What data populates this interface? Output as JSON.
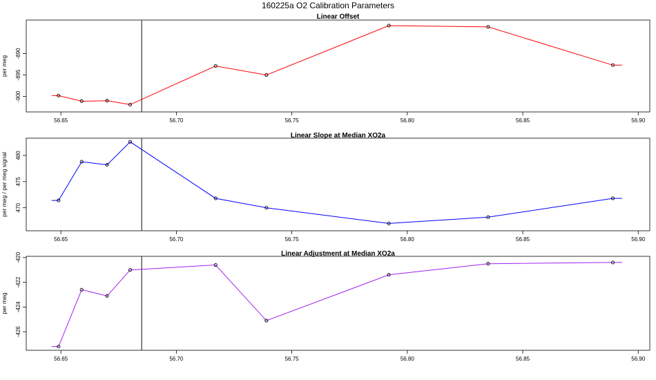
{
  "figure": {
    "title": "160225a   O2 Calibration Parameters"
  },
  "chart_data": [
    {
      "type": "line",
      "title": "Linear Offset",
      "xlabel": "",
      "ylabel": "per meg",
      "color": "#ff0000",
      "point_color": "#000000",
      "marker_line_x": 56.685,
      "xlim": [
        56.635,
        56.905
      ],
      "ylim": [
        -903.6,
        -882.2
      ],
      "x_ticks": [
        56.65,
        56.7,
        56.75,
        56.8,
        56.85,
        56.9
      ],
      "x_tick_labels": [
        "56.65",
        "56.70",
        "56.75",
        "56.80",
        "56.85",
        "56.90"
      ],
      "y_ticks": [
        -900,
        -895,
        -890
      ],
      "y_tick_labels": [
        "-900",
        "-895",
        "-890"
      ],
      "line": {
        "x": [
          56.646,
          56.649,
          56.659,
          56.67,
          56.68,
          56.717,
          56.739,
          56.792,
          56.835,
          56.889,
          56.893
        ],
        "y": [
          -899.8,
          -899.8,
          -901.1,
          -901.0,
          -901.9,
          -892.9,
          -895.0,
          -883.5,
          -883.8,
          -892.7,
          -892.7
        ]
      },
      "points": {
        "x": [
          56.649,
          56.659,
          56.67,
          56.68,
          56.717,
          56.739,
          56.792,
          56.835,
          56.889
        ],
        "y": [
          -899.8,
          -901.1,
          -901.0,
          -901.9,
          -892.9,
          -895.0,
          -883.5,
          -883.8,
          -892.7
        ]
      }
    },
    {
      "type": "line",
      "title": "Linear Slope at Median XO2a",
      "xlabel": "",
      "ylabel": "per meg / per meg signal",
      "color": "#0000ff",
      "point_color": "#000000",
      "marker_line_x": 56.685,
      "xlim": [
        56.635,
        56.905
      ],
      "ylim": [
        465.6,
        483.3
      ],
      "x_ticks": [
        56.65,
        56.7,
        56.75,
        56.8,
        56.85,
        56.9
      ],
      "x_tick_labels": [
        "56.65",
        "56.70",
        "56.75",
        "56.80",
        "56.85",
        "56.90"
      ],
      "y_ticks": [
        470,
        475,
        480
      ],
      "y_tick_labels": [
        "470",
        "475",
        "480"
      ],
      "line": {
        "x": [
          56.646,
          56.649,
          56.659,
          56.67,
          56.68,
          56.717,
          56.739,
          56.792,
          56.835,
          56.889,
          56.893
        ],
        "y": [
          471.4,
          471.4,
          478.8,
          478.2,
          482.6,
          471.8,
          470.0,
          467.0,
          468.2,
          471.8,
          471.8
        ]
      },
      "points": {
        "x": [
          56.649,
          56.659,
          56.67,
          56.68,
          56.717,
          56.739,
          56.792,
          56.835,
          56.889
        ],
        "y": [
          471.4,
          478.8,
          478.2,
          482.6,
          471.8,
          470.0,
          467.0,
          468.2,
          471.8
        ]
      }
    },
    {
      "type": "line",
      "title": "Linear Adjustment at Median XO2a",
      "xlabel": "",
      "ylabel": "per meg",
      "color": "#a020f0",
      "point_color": "#000000",
      "marker_line_x": 56.685,
      "xlim": [
        56.635,
        56.905
      ],
      "ylim": [
        -427.5,
        -419.9
      ],
      "x_ticks": [
        56.65,
        56.7,
        56.75,
        56.8,
        56.85,
        56.9
      ],
      "x_tick_labels": [
        "56.65",
        "56.70",
        "56.75",
        "56.80",
        "56.85",
        "56.90"
      ],
      "y_ticks": [
        -426,
        -424,
        -422,
        -420
      ],
      "y_tick_labels": [
        "-426",
        "-424",
        "-422",
        "-420"
      ],
      "line": {
        "x": [
          56.646,
          56.649,
          56.659,
          56.67,
          56.68,
          56.717,
          56.739,
          56.792,
          56.835,
          56.889,
          56.893
        ],
        "y": [
          -427.2,
          -427.2,
          -422.6,
          -423.1,
          -421.0,
          -420.6,
          -425.1,
          -421.4,
          -420.5,
          -420.4,
          -420.4
        ]
      },
      "points": {
        "x": [
          56.649,
          56.659,
          56.67,
          56.68,
          56.717,
          56.739,
          56.792,
          56.835,
          56.889
        ],
        "y": [
          -427.2,
          -422.6,
          -423.1,
          -421.0,
          -420.6,
          -425.1,
          -421.4,
          -420.5,
          -420.4
        ]
      }
    }
  ]
}
